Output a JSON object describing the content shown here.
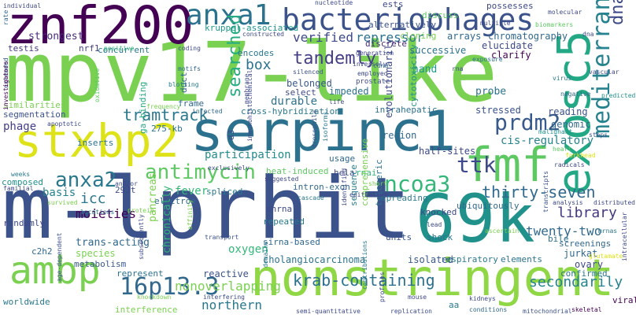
{
  "words": [
    {
      "text": "mpv17-like",
      "color": "#7ad151"
    },
    {
      "text": "m-lprhit",
      "color": "#3b528b"
    },
    {
      "text": "serpinc1",
      "color": "#2c728e"
    },
    {
      "text": "nonstringent",
      "color": "#8fd744"
    },
    {
      "text": "znf200",
      "color": "#440154"
    },
    {
      "text": "stxbp2",
      "color": "#dde318"
    },
    {
      "text": "fmf",
      "color": "#5ec962"
    },
    {
      "text": "69k",
      "color": "#21918c"
    },
    {
      "text": "exosc5",
      "color": "#22a884"
    },
    {
      "text": "ambp",
      "color": "#7ad151"
    },
    {
      "text": "bacteriophages",
      "color": "#3b528b"
    },
    {
      "text": "anxa1",
      "color": "#2c728e"
    },
    {
      "text": "16p13.3",
      "color": "#31688e"
    },
    {
      "text": "prdm2",
      "color": "#38598c"
    },
    {
      "text": "ttk",
      "color": "#3e4989"
    },
    {
      "text": "ncoa3",
      "color": "#35b779"
    },
    {
      "text": "antimycin",
      "color": "#5ec962"
    },
    {
      "text": "anxa2",
      "color": "#2a788e"
    },
    {
      "text": "mediterranean",
      "color": "#26828e"
    },
    {
      "text": "tandemly",
      "color": "#433e85"
    },
    {
      "text": "tramtrack",
      "color": "#2a788e"
    },
    {
      "text": "krab-containing",
      "color": "#2c728e"
    },
    {
      "text": "thirty-seven",
      "color": "#31688e"
    },
    {
      "text": "library",
      "color": "#453781"
    },
    {
      "text": "dnas",
      "color": "#3e4989"
    },
    {
      "text": "secondarily",
      "color": "#26828e"
    },
    {
      "text": "nonoverlapping",
      "color": "#7ad151"
    },
    {
      "text": "searched",
      "color": "#25ac82"
    },
    {
      "text": "twenty-two",
      "color": "#31688e"
    },
    {
      "text": "verified",
      "color": "#3e4989"
    },
    {
      "text": "northern",
      "color": "#2a788e"
    },
    {
      "text": "repressor",
      "color": "#2c728e"
    },
    {
      "text": "participation",
      "color": "#238a8d"
    },
    {
      "text": "icc",
      "color": "#2a788e"
    },
    {
      "text": "moieties",
      "color": "#440154"
    },
    {
      "text": "basis",
      "color": "#26828e"
    },
    {
      "text": "fever",
      "color": "#35b779"
    },
    {
      "text": "durable",
      "color": "#2c728e"
    },
    {
      "text": "box",
      "color": "#2c728e"
    },
    {
      "text": "belonged",
      "color": "#38598c"
    },
    {
      "text": "kruppel-associated",
      "color": "#1f988b"
    },
    {
      "text": "strongest",
      "color": "#472c7a"
    },
    {
      "text": "phage",
      "color": "#433e85"
    },
    {
      "text": "segmentation",
      "color": "#3b528b"
    },
    {
      "text": "similarities",
      "color": "#7ad151"
    },
    {
      "text": "nrf1",
      "color": "#433e85"
    },
    {
      "text": "testis",
      "color": "#453781"
    },
    {
      "text": "concurrent",
      "color": "#2a788e"
    },
    {
      "text": "frame",
      "color": "#31688e"
    },
    {
      "text": "inserts",
      "color": "#2c728e"
    },
    {
      "text": "275-kb",
      "color": "#2c728e"
    },
    {
      "text": "ga-binding",
      "color": "#25ac82"
    },
    {
      "text": "duct",
      "color": "#31688e"
    },
    {
      "text": "encodes",
      "color": "#2a788e"
    },
    {
      "text": "impeded",
      "color": "#2c728e"
    },
    {
      "text": "cross-hybridization",
      "color": "#2a788e"
    },
    {
      "text": "d3",
      "color": "#3e4989"
    },
    {
      "text": "region",
      "color": "#31688e"
    },
    {
      "text": "intrahepatic",
      "color": "#2c728e"
    },
    {
      "text": "cis-regulatory",
      "color": "#26828e"
    },
    {
      "text": "half-sites",
      "color": "#3e4989"
    },
    {
      "text": "genomic",
      "color": "#31688e"
    },
    {
      "text": "reading",
      "color": "#3b528b"
    },
    {
      "text": "stressed",
      "color": "#3b528b"
    },
    {
      "text": "probe",
      "color": "#2c728e"
    },
    {
      "text": "hand",
      "color": "#1f988b"
    },
    {
      "text": "evolutionarily",
      "color": "#3e4989"
    },
    {
      "text": "cytotoxicity",
      "color": "#21918c"
    },
    {
      "text": "discrete",
      "color": "#472c7a"
    },
    {
      "text": "successive",
      "color": "#2c728e"
    },
    {
      "text": "elucidate",
      "color": "#3e4989"
    },
    {
      "text": "clarify",
      "color": "#440154"
    },
    {
      "text": "chromatography",
      "color": "#31688e"
    },
    {
      "text": "arrays",
      "color": "#31688e"
    },
    {
      "text": "cloning",
      "color": "#7ad151"
    },
    {
      "text": "alternatively",
      "color": "#3b528b"
    },
    {
      "text": "ests",
      "color": "#3e4989"
    },
    {
      "text": "discuss",
      "color": "#5ec962"
    },
    {
      "text": "possesses",
      "color": "#3e4989"
    },
    {
      "text": "heat-induced",
      "color": "#5ec962"
    },
    {
      "text": "spreading",
      "color": "#2a788e"
    },
    {
      "text": "intron-exon",
      "color": "#31688e"
    },
    {
      "text": "rnai",
      "color": "#35b779"
    },
    {
      "text": "hela",
      "color": "#3e4989"
    },
    {
      "text": "usage",
      "color": "#31688e"
    },
    {
      "text": "telomeric",
      "color": "#2c728e"
    },
    {
      "text": "sequence",
      "color": "#26828e"
    },
    {
      "text": "comprehensive",
      "color": "#7ad151"
    },
    {
      "text": "ubiquitously",
      "color": "#31688e"
    },
    {
      "text": "knocked",
      "color": "#3e4989"
    },
    {
      "text": "shock",
      "color": "#2c728e"
    },
    {
      "text": "bile",
      "color": "#2c728e"
    },
    {
      "text": "screenings",
      "color": "#31688e"
    },
    {
      "text": "jurkat",
      "color": "#31688e"
    },
    {
      "text": "ovary",
      "color": "#3e4989"
    },
    {
      "text": "confirmed",
      "color": "#2a788e"
    },
    {
      "text": "elements",
      "color": "#2c728e"
    },
    {
      "text": "respiratory",
      "color": "#2a788e"
    },
    {
      "text": "isolated",
      "color": "#38598c"
    },
    {
      "text": "units",
      "color": "#3b528b"
    },
    {
      "text": "shrna",
      "color": "#3e4989"
    },
    {
      "text": "sirna-based",
      "color": "#31688e"
    },
    {
      "text": "repeated",
      "color": "#2a788e"
    },
    {
      "text": "cholangiocarcinoma",
      "color": "#2c728e"
    },
    {
      "text": "oxygen",
      "color": "#35b779"
    },
    {
      "text": "spliced",
      "color": "#2a788e"
    },
    {
      "text": "electron",
      "color": "#31688e"
    },
    {
      "text": "pancreas",
      "color": "#7ad151"
    },
    {
      "text": "chronically",
      "color": "#35b779"
    },
    {
      "text": "reactive",
      "color": "#3b528b"
    },
    {
      "text": "trans-acting",
      "color": "#31688e"
    },
    {
      "text": "species",
      "color": "#7ad151"
    },
    {
      "text": "metabolism",
      "color": "#38598c"
    },
    {
      "text": "represent",
      "color": "#2c728e"
    },
    {
      "text": "interference",
      "color": "#7ad151"
    },
    {
      "text": "worldwide",
      "color": "#2a788e"
    },
    {
      "text": "randomly",
      "color": "#3e4989"
    },
    {
      "text": "composed",
      "color": "#21918c"
    },
    {
      "text": "293t",
      "color": "#3e4989"
    },
    {
      "text": "c2h2",
      "color": "#31688e"
    },
    {
      "text": "aa",
      "color": "#2a788e"
    },
    {
      "text": "viral",
      "color": "#440154"
    },
    {
      "text": "predicted",
      "color": "#21918c"
    },
    {
      "text": "virus",
      "color": "#2a788e"
    },
    {
      "text": "negative",
      "color": "#31688e"
    },
    {
      "text": "heart",
      "color": "#5ec962"
    },
    {
      "text": "forkhead",
      "color": "#dde318"
    },
    {
      "text": "steps",
      "color": "#3b528b"
    },
    {
      "text": "malignant",
      "color": "#21918c"
    },
    {
      "text": "prostate",
      "color": "#3e4989"
    },
    {
      "text": "employed",
      "color": "#3e4989"
    },
    {
      "text": "exposure",
      "color": "#2c728e"
    },
    {
      "text": "cdna",
      "color": "#31688e"
    },
    {
      "text": "isoforms",
      "color": "#2a788e"
    },
    {
      "text": "drosophila",
      "color": "#3b528b"
    },
    {
      "text": "life",
      "color": "#3e4989"
    },
    {
      "text": "membrane",
      "color": "#3e4989"
    },
    {
      "text": "infected",
      "color": "#31688e"
    },
    {
      "text": "frequency",
      "color": "#7ad151"
    },
    {
      "text": "blotting",
      "color": "#2a788e"
    },
    {
      "text": "oxidative",
      "color": "#5ec962"
    },
    {
      "text": "positive",
      "color": "#35b779"
    },
    {
      "text": "coding",
      "color": "#3e4989"
    },
    {
      "text": "rate",
      "color": "#31688e"
    },
    {
      "text": "individual",
      "color": "#3e4989"
    },
    {
      "text": "extended",
      "color": "#38598c"
    },
    {
      "text": "investigators",
      "color": "#440154"
    },
    {
      "text": "apoptotic",
      "color": "#3e4989"
    },
    {
      "text": "weeks",
      "color": "#2a788e"
    },
    {
      "text": "familial",
      "color": "#3e4989"
    },
    {
      "text": "survived",
      "color": "#7ad151"
    },
    {
      "text": "age-dependent",
      "color": "#3b528b"
    },
    {
      "text": "locations",
      "color": "#2c728e"
    },
    {
      "text": "and/or",
      "color": "#3e4989"
    },
    {
      "text": "exclusively",
      "color": "#3e4989"
    },
    {
      "text": "suggested",
      "color": "#3e4989"
    },
    {
      "text": "cascade",
      "color": "#2a788e"
    },
    {
      "text": "transport",
      "color": "#3b528b"
    },
    {
      "text": "interfering",
      "color": "#3e4989"
    },
    {
      "text": "affinity",
      "color": "#7ad151"
    },
    {
      "text": "subsequently",
      "color": "#3e4989"
    },
    {
      "text": "knockdown",
      "color": "#7ad151"
    },
    {
      "text": "domains",
      "color": "#2a788e"
    },
    {
      "text": "mouse",
      "color": "#3e4989"
    },
    {
      "text": "kidneys",
      "color": "#3e4989"
    },
    {
      "text": "semi-quantitative",
      "color": "#3e4989"
    },
    {
      "text": "replication",
      "color": "#3e4989"
    },
    {
      "text": "mitochondrial",
      "color": "#3b528b"
    },
    {
      "text": "skeletal",
      "color": "#440154"
    },
    {
      "text": "conditions",
      "color": "#31688e"
    },
    {
      "text": "profiles",
      "color": "#3e4989"
    },
    {
      "text": "contributions",
      "color": "#2a788e"
    },
    {
      "text": "transcripts",
      "color": "#3b528b"
    },
    {
      "text": "analysis",
      "color": "#3e4989"
    },
    {
      "text": "distributed",
      "color": "#3e4989"
    },
    {
      "text": "intracellular",
      "color": "#3e4989"
    },
    {
      "text": "mrnas",
      "color": "#2a788e"
    },
    {
      "text": "dna",
      "color": "#3e4989"
    },
    {
      "text": "biomarkers",
      "color": "#5ec962"
    },
    {
      "text": "molecular",
      "color": "#3e4989"
    },
    {
      "text": "nucleotide",
      "color": "#3e4989"
    },
    {
      "text": "multiple",
      "color": "#3e4989"
    },
    {
      "text": "constructed",
      "color": "#3e4989"
    },
    {
      "text": "generation",
      "color": "#3e4989"
    },
    {
      "text": "motifs",
      "color": "#31688e"
    },
    {
      "text": "silenced",
      "color": "#3b528b"
    },
    {
      "text": "select",
      "color": "#3e4989"
    },
    {
      "text": "short",
      "color": "#7ad151"
    },
    {
      "text": "epithelium",
      "color": "#3e4989"
    },
    {
      "text": "identified",
      "color": "#3e4989"
    },
    {
      "text": "lead",
      "color": "#3e4989"
    },
    {
      "text": "has",
      "color": "#7ad151"
    },
    {
      "text": "inversely",
      "color": "#3e4989"
    },
    {
      "text": "immunohistochemical",
      "color": "#3e4989"
    },
    {
      "text": "rna",
      "color": "#3e4989"
    },
    {
      "text": "vascular",
      "color": "#3e4989"
    },
    {
      "text": "radicals",
      "color": "#3e4989"
    },
    {
      "text": "glutamate",
      "color": "#dde318"
    },
    {
      "text": "protein",
      "color": "#7ad151"
    },
    {
      "text": "ascertain",
      "color": "#7ad151"
    }
  ]
}
